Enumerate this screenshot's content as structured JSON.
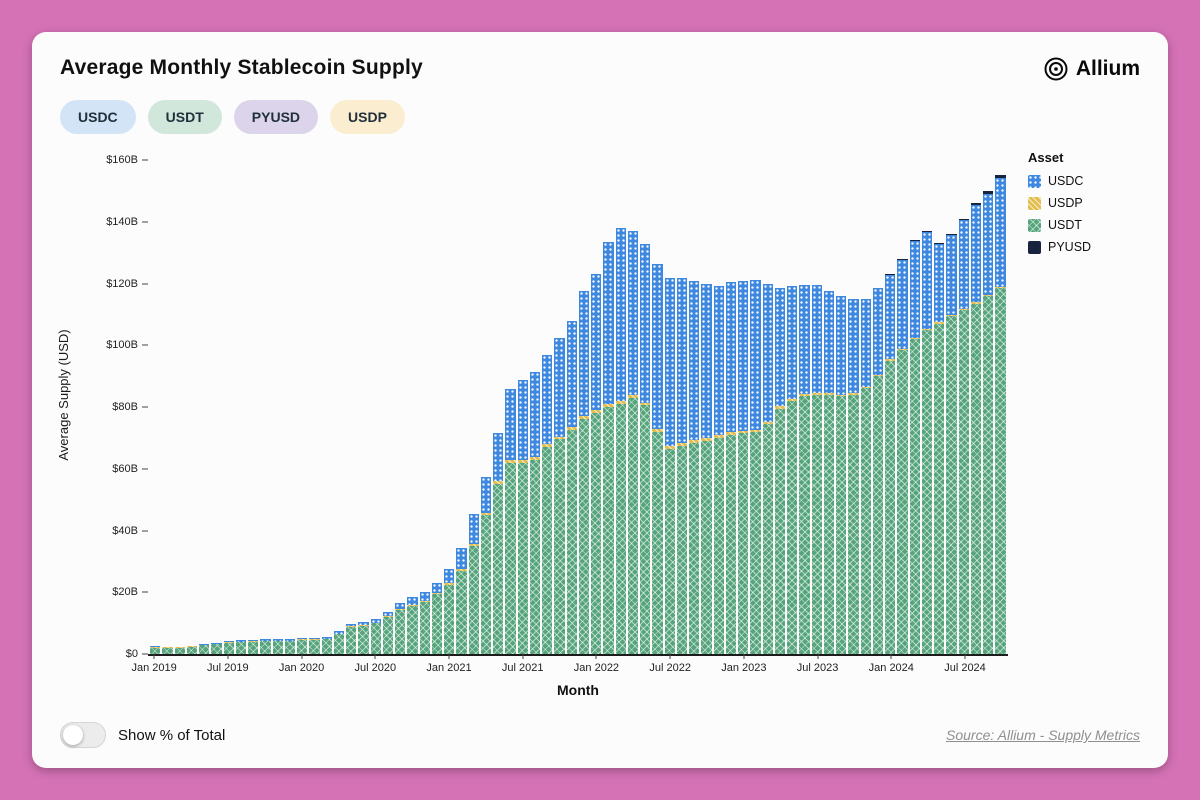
{
  "colors": {
    "page_bg": "#d572b6",
    "card_bg": "#fcfcfc",
    "usdc": "#3f88e0",
    "usdt": "#55a47c",
    "usdp": "#e3bd4e",
    "pyusd": "#17233f"
  },
  "header": {
    "title": "Average Monthly Stablecoin Supply",
    "brand": "Allium"
  },
  "filters": {
    "items": [
      {
        "label": "USDC",
        "bg": "#d4e4f7"
      },
      {
        "label": "USDT",
        "bg": "#d2e7db"
      },
      {
        "label": "PYUSD",
        "bg": "#dbd4ea"
      },
      {
        "label": "USDP",
        "bg": "#fbeed0"
      }
    ]
  },
  "footer": {
    "toggle_label": "Show % of Total",
    "toggle_state": "off",
    "source": "Source: Allium - Supply Metrics"
  },
  "chart_data": {
    "type": "bar",
    "stacked": true,
    "title": "Average Monthly Stablecoin Supply",
    "xlabel": "Month",
    "ylabel": "Average Supply (USD)",
    "unit": "USD billions",
    "ylim": [
      0,
      160
    ],
    "grid": false,
    "yticks": [
      "$0",
      "$20B",
      "$40B",
      "$60B",
      "$80B",
      "$100B",
      "$120B",
      "$140B",
      "$160B"
    ],
    "xticks": [
      {
        "index": 0,
        "label": "Jan 2019"
      },
      {
        "index": 6,
        "label": "Jul 2019"
      },
      {
        "index": 12,
        "label": "Jan 2020"
      },
      {
        "index": 18,
        "label": "Jul 2020"
      },
      {
        "index": 24,
        "label": "Jan 2021"
      },
      {
        "index": 30,
        "label": "Jul 2021"
      },
      {
        "index": 36,
        "label": "Jan 2022"
      },
      {
        "index": 42,
        "label": "Jul 2022"
      },
      {
        "index": 48,
        "label": "Jan 2023"
      },
      {
        "index": 54,
        "label": "Jul 2023"
      },
      {
        "index": 60,
        "label": "Jan 2024"
      },
      {
        "index": 66,
        "label": "Jul 2024"
      }
    ],
    "x": [
      "Jan 2019",
      "Feb 2019",
      "Mar 2019",
      "Apr 2019",
      "May 2019",
      "Jun 2019",
      "Jul 2019",
      "Aug 2019",
      "Sep 2019",
      "Oct 2019",
      "Nov 2019",
      "Dec 2019",
      "Jan 2020",
      "Feb 2020",
      "Mar 2020",
      "Apr 2020",
      "May 2020",
      "Jun 2020",
      "Jul 2020",
      "Aug 2020",
      "Sep 2020",
      "Oct 2020",
      "Nov 2020",
      "Dec 2020",
      "Jan 2021",
      "Feb 2021",
      "Mar 2021",
      "Apr 2021",
      "May 2021",
      "Jun 2021",
      "Jul 2021",
      "Aug 2021",
      "Sep 2021",
      "Oct 2021",
      "Nov 2021",
      "Dec 2021",
      "Jan 2022",
      "Feb 2022",
      "Mar 2022",
      "Apr 2022",
      "May 2022",
      "Jun 2022",
      "Jul 2022",
      "Aug 2022",
      "Sep 2022",
      "Oct 2022",
      "Nov 2022",
      "Dec 2022",
      "Jan 2023",
      "Feb 2023",
      "Mar 2023",
      "Apr 2023",
      "May 2023",
      "Jun 2023",
      "Jul 2023",
      "Aug 2023",
      "Sep 2023",
      "Oct 2023",
      "Nov 2023",
      "Dec 2023",
      "Jan 2024",
      "Feb 2024",
      "Mar 2024",
      "Apr 2024",
      "May 2024",
      "Jun 2024",
      "Jul 2024",
      "Aug 2024",
      "Sep 2024",
      "Oct 2024"
    ],
    "stack_order": [
      "USDT",
      "USDP",
      "USDC",
      "PYUSD"
    ],
    "series": [
      {
        "name": "USDT",
        "color": "#55a47c",
        "pattern": "crosshatch",
        "values": [
          2.0,
          2.0,
          2.0,
          2.3,
          2.8,
          3.2,
          3.6,
          3.8,
          4.0,
          4.1,
          4.1,
          4.1,
          4.6,
          4.6,
          4.8,
          6.4,
          8.8,
          9.2,
          9.9,
          12.0,
          14.4,
          15.7,
          17.0,
          19.5,
          22.5,
          27.0,
          35.0,
          45.0,
          55.0,
          62.0,
          62.0,
          63.0,
          67.0,
          69.5,
          72.5,
          76.0,
          78.0,
          80.0,
          81.0,
          83.0,
          80.5,
          72.0,
          66.5,
          67.5,
          68.5,
          69.0,
          70.0,
          71.0,
          71.5,
          72.0,
          74.5,
          79.5,
          82.0,
          83.5,
          84.0,
          84.0,
          83.5,
          84.0,
          86.0,
          90.0,
          95.0,
          98.5,
          102.0,
          105.0,
          107.0,
          109.5,
          111.5,
          113.5,
          116.0,
          118.5
        ]
      },
      {
        "name": "USDP",
        "color": "#e3bd4e",
        "pattern": "diagonal",
        "values": [
          0.15,
          0.15,
          0.15,
          0.15,
          0.15,
          0.15,
          0.15,
          0.15,
          0.2,
          0.2,
          0.2,
          0.2,
          0.2,
          0.2,
          0.2,
          0.2,
          0.2,
          0.2,
          0.25,
          0.25,
          0.3,
          0.3,
          0.3,
          0.35,
          0.4,
          0.5,
          0.7,
          0.8,
          1.0,
          1.0,
          0.9,
          0.9,
          0.9,
          0.9,
          0.95,
          0.95,
          0.95,
          0.95,
          0.95,
          0.95,
          0.95,
          0.9,
          0.9,
          0.9,
          0.9,
          0.9,
          0.85,
          0.85,
          0.75,
          0.7,
          0.7,
          0.7,
          0.65,
          0.6,
          0.55,
          0.5,
          0.5,
          0.5,
          0.45,
          0.45,
          0.4,
          0.4,
          0.4,
          0.4,
          0.4,
          0.4,
          0.4,
          0.4,
          0.4,
          0.4
        ]
      },
      {
        "name": "USDC",
        "color": "#3f88e0",
        "pattern": "dots",
        "values": [
          0.3,
          0.25,
          0.25,
          0.3,
          0.35,
          0.35,
          0.4,
          0.45,
          0.45,
          0.45,
          0.45,
          0.5,
          0.5,
          0.45,
          0.6,
          0.7,
          0.7,
          0.9,
          1.1,
          1.4,
          1.9,
          2.6,
          2.9,
          3.3,
          4.7,
          7.0,
          9.5,
          11.5,
          15.5,
          23.0,
          26.0,
          27.5,
          29.0,
          32.0,
          34.5,
          40.5,
          44.0,
          52.5,
          56.0,
          53.0,
          51.5,
          53.5,
          54.5,
          53.5,
          51.5,
          50.0,
          48.5,
          48.5,
          48.5,
          48.5,
          44.5,
          38.5,
          36.5,
          35.5,
          35.0,
          33.0,
          32.0,
          30.5,
          28.5,
          28.0,
          27.3,
          28.8,
          31.3,
          31.3,
          25.3,
          25.7,
          28.6,
          31.4,
          32.7,
          35.4
        ]
      },
      {
        "name": "PYUSD",
        "color": "#17233f",
        "pattern": "solid",
        "values": [
          0,
          0,
          0,
          0,
          0,
          0,
          0,
          0,
          0,
          0,
          0,
          0,
          0,
          0,
          0,
          0,
          0,
          0,
          0,
          0,
          0,
          0,
          0,
          0,
          0,
          0,
          0,
          0,
          0,
          0,
          0,
          0,
          0,
          0,
          0,
          0,
          0,
          0,
          0,
          0,
          0,
          0,
          0,
          0,
          0,
          0,
          0,
          0,
          0,
          0,
          0,
          0,
          0,
          0,
          0,
          0.05,
          0.1,
          0.15,
          0.2,
          0.25,
          0.3,
          0.3,
          0.3,
          0.3,
          0.35,
          0.4,
          0.5,
          0.7,
          0.9,
          0.75
        ]
      }
    ],
    "legend": {
      "title": "Asset",
      "position": "right",
      "items": [
        "USDC",
        "USDP",
        "USDT",
        "PYUSD"
      ]
    }
  }
}
